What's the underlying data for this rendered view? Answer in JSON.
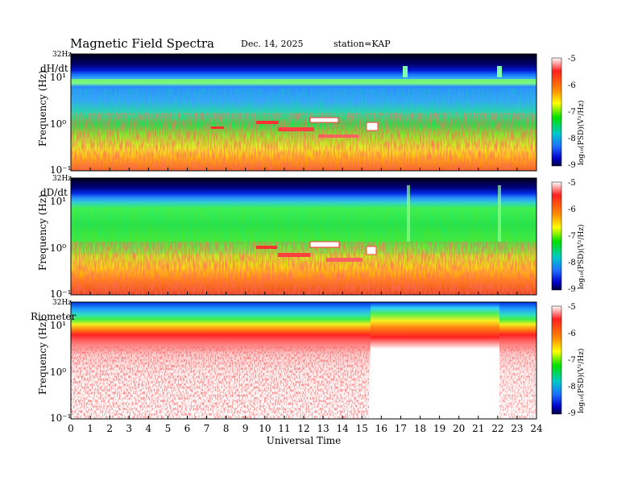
{
  "header": {
    "title": "Magnetic  Field  Spectra",
    "date": "Dec. 14, 2025",
    "station": "station=KAP"
  },
  "chart_data": {
    "type": "heatmap",
    "xlabel": "Universal Time",
    "x_ticks": [
      "0",
      "1",
      "2",
      "3",
      "4",
      "5",
      "6",
      "7",
      "8",
      "9",
      "10",
      "11",
      "12",
      "13",
      "14",
      "15",
      "16",
      "17",
      "18",
      "19",
      "20",
      "21",
      "22",
      "23",
      "24"
    ],
    "xlim": [
      0,
      24
    ],
    "panels": [
      {
        "name": "dH/dt",
        "ylabel": "Frequency (Hz)",
        "y_top_label": "32Hz",
        "y_ticks": [
          "10¹",
          "10⁰",
          "10⁻¹"
        ],
        "colorbar": {
          "label": "log₁₀(PSD)(V²/Hz)",
          "ticks": [
            "-5",
            "-6",
            "-7",
            "-8",
            "-9"
          ],
          "range": [
            -9,
            -5
          ]
        }
      },
      {
        "name": "dD/dt",
        "ylabel": "Frequency (Hz)",
        "y_top_label": "32Hz",
        "y_ticks": [
          "10¹",
          "10⁰",
          "10⁻¹"
        ],
        "colorbar": {
          "label": "log₁₀(PSD)(V²/Hz)",
          "ticks": [
            "-5",
            "-6",
            "-7",
            "-8",
            "-9"
          ],
          "range": [
            -9,
            -5
          ]
        }
      },
      {
        "name": "Riometer",
        "ylabel": "Frequency (Hz)",
        "y_top_label": "32Hz",
        "y_ticks": [
          "10¹",
          "10⁰",
          "10⁻¹"
        ],
        "colorbar": {
          "label": "log₁₀(PSD)(V²/Hz)",
          "ticks": [
            "-5",
            "-6",
            "-7",
            "-8",
            "-9"
          ],
          "range": [
            -9,
            -5
          ]
        }
      }
    ]
  }
}
